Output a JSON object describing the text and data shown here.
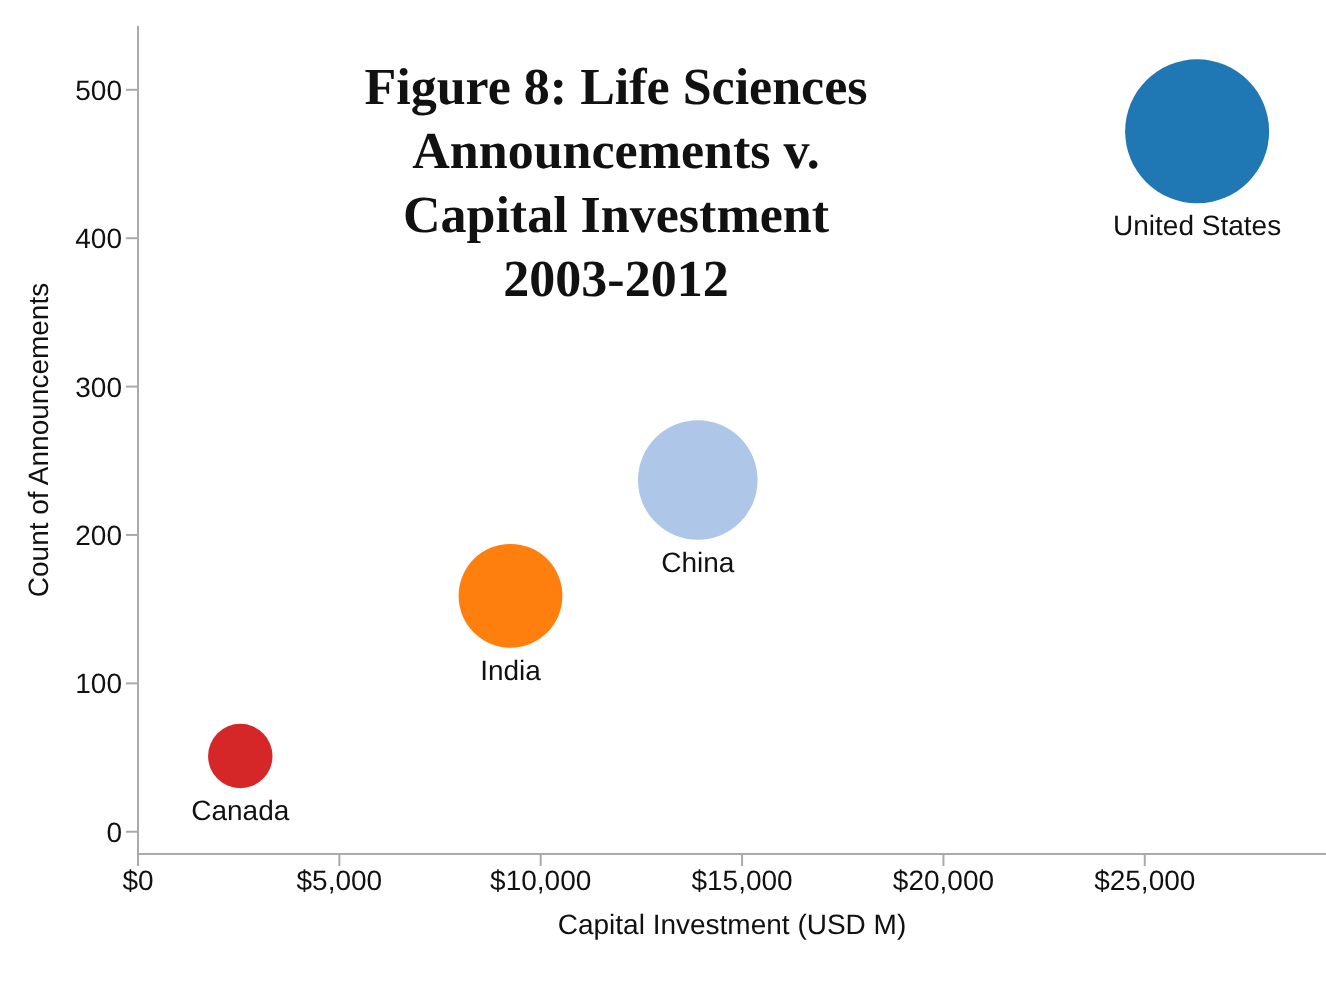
{
  "chart_data": {
    "type": "bubble",
    "title": "Figure 8: Life Sciences Announcements v. Capital Investment 2003-2012",
    "xlabel": "Capital Investment (USD M)",
    "ylabel": "Count of Announcements",
    "series": [
      {
        "name": "United States",
        "color": "#1f77b4",
        "x": [
          26300
        ],
        "values": [
          472
        ],
        "sizes": [
          1
        ]
      },
      {
        "name": "China",
        "color": "#aec7e8",
        "x": [
          13900
        ],
        "values": [
          237
        ],
        "sizes": [
          0.69
        ]
      },
      {
        "name": "India",
        "color": "#ff7f0e",
        "x": [
          9250
        ],
        "values": [
          159
        ],
        "sizes": [
          0.52
        ]
      },
      {
        "name": "Canada",
        "color": "#d62728",
        "x": [
          2540
        ],
        "values": [
          51
        ],
        "sizes": [
          0.2
        ]
      }
    ],
    "xlim": [
      0,
      29500
    ],
    "xticks": [
      {
        "value": 0,
        "label": "$0"
      },
      {
        "value": 5000,
        "label": "$5,000"
      },
      {
        "value": 10000,
        "label": "$10,000"
      },
      {
        "value": 15000,
        "label": "$15,000"
      },
      {
        "value": 20000,
        "label": "$20,000"
      },
      {
        "value": 25000,
        "label": "$25,000"
      }
    ],
    "ylim": [
      -15,
      543
    ],
    "yticks": [
      0,
      100,
      200,
      300,
      400,
      500
    ],
    "grid": false,
    "legend": false
  }
}
